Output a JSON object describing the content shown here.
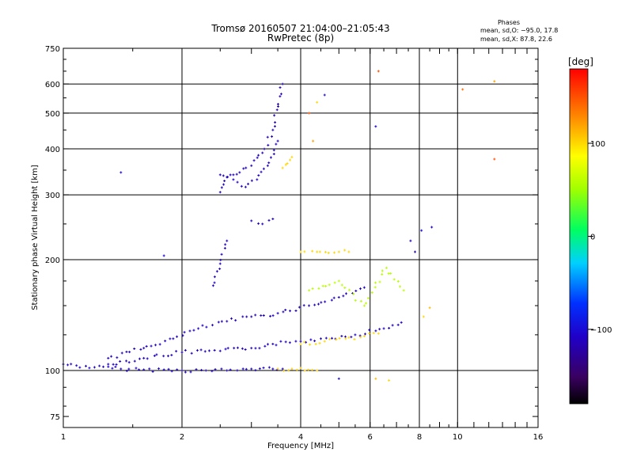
{
  "chart_data": {
    "type": "scatter",
    "title": "Tromsø 20160507 21:04:00–21:05:43",
    "subtitle": "RwPretec (8p)",
    "xlabel": "Frequency [MHz]",
    "ylabel": "Stationary phase Virtual Height [km]",
    "x_scale": "log",
    "y_scale": "log",
    "xlim": [
      1,
      16
    ],
    "ylim": [
      70,
      750
    ],
    "x_ticks": [
      1,
      2,
      4,
      6,
      8,
      10,
      16
    ],
    "x_tick_labels": [
      "1",
      "2",
      "4",
      "6",
      "8",
      "10",
      "16"
    ],
    "y_ticks": [
      75,
      100,
      200,
      300,
      400,
      500,
      600,
      750
    ],
    "y_tick_labels": [
      "75",
      "100",
      "200",
      "300",
      "400",
      "500",
      "600",
      "750"
    ],
    "grid": true,
    "phase_stats": {
      "heading": "Phases",
      "o_line": "mean, sd,O: −95.0, 17.8",
      "x_line": "mean, sd,X:  87.8, 22.6"
    },
    "colorbar": {
      "label": "[deg]",
      "range": [
        -180,
        180
      ],
      "ticks": [
        -100,
        0,
        100
      ],
      "tick_labels": [
        "−100",
        "0",
        "100"
      ],
      "colormap": "rainbow"
    },
    "traces": [
      {
        "x": [
          1.0,
          1.2,
          1.4,
          1.6,
          1.8,
          2.0,
          2.3,
          2.6,
          3.0,
          3.4,
          3.6
        ],
        "y": [
          104,
          102,
          101,
          100.5,
          100.5,
          100,
          100,
          100,
          101,
          101,
          101
        ],
        "phase": -105
      },
      {
        "x": [
          3.5,
          3.8,
          4.1,
          4.4
        ],
        "y": [
          101,
          101,
          100,
          100
        ],
        "phase": 105
      },
      {
        "x": [
          1.3,
          1.6,
          2.0,
          2.5,
          3.0,
          3.4,
          4.0,
          4.5,
          5.5,
          6.5,
          7.2
        ],
        "y": [
          104,
          108,
          112,
          113,
          115,
          118,
          120,
          122,
          125,
          130,
          135
        ],
        "phase": -110
      },
      {
        "x": [
          1.3,
          1.6,
          1.9,
          2.2,
          2.6,
          3.0,
          3.5,
          4.2,
          5.0,
          5.8
        ],
        "y": [
          108,
          115,
          122,
          130,
          136,
          140,
          143,
          150,
          158,
          168
        ],
        "phase": -110
      },
      {
        "x": [
          4.0,
          4.6,
          5.2,
          5.8,
          6.3
        ],
        "y": [
          118,
          120,
          122,
          124,
          126
        ],
        "phase": 100
      },
      {
        "x": [
          2.5,
          2.55,
          2.6,
          2.7,
          2.8,
          3.0,
          3.2,
          3.4,
          3.6
        ],
        "y": [
          305,
          320,
          335,
          340,
          345,
          360,
          390,
          450,
          600
        ],
        "phase": -115
      },
      {
        "x": [
          2.5,
          2.7,
          2.9,
          3.1,
          3.3,
          3.5
        ],
        "y": [
          340,
          330,
          315,
          330,
          360,
          420
        ],
        "phase": -110
      },
      {
        "x": [
          3.6,
          3.7,
          3.8
        ],
        "y": [
          355,
          365,
          380
        ],
        "phase": 100
      },
      {
        "x": [
          2.4,
          2.5,
          2.6
        ],
        "y": [
          170,
          195,
          225
        ],
        "phase": -110
      },
      {
        "x": [
          4.0,
          4.4,
          5.0,
          5.3
        ],
        "y": [
          210,
          210,
          210,
          210
        ],
        "phase": 100
      },
      {
        "x": [
          3.0,
          3.2,
          3.4
        ],
        "y": [
          255,
          250,
          258
        ],
        "phase": -110
      },
      {
        "x": [
          4.2,
          5.0,
          5.8,
          6.6,
          7.3
        ],
        "y": [
          165,
          175,
          150,
          190,
          165
        ],
        "phase": 60
      }
    ],
    "scattered_points": [
      {
        "x": 1.4,
        "y": 345,
        "phase": -100
      },
      {
        "x": 1.8,
        "y": 205,
        "phase": -100
      },
      {
        "x": 6.2,
        "y": 460,
        "phase": -100
      },
      {
        "x": 6.3,
        "y": 650,
        "phase": 150
      },
      {
        "x": 10.3,
        "y": 580,
        "phase": 140
      },
      {
        "x": 12.4,
        "y": 610,
        "phase": 120
      },
      {
        "x": 12.4,
        "y": 375,
        "phase": 150
      },
      {
        "x": 4.6,
        "y": 560,
        "phase": -100
      },
      {
        "x": 4.4,
        "y": 535,
        "phase": 100
      },
      {
        "x": 4.2,
        "y": 500,
        "phase": 150
      },
      {
        "x": 4.3,
        "y": 420,
        "phase": 120
      },
      {
        "x": 5.0,
        "y": 95,
        "phase": -100
      },
      {
        "x": 6.2,
        "y": 95,
        "phase": 110
      },
      {
        "x": 6.7,
        "y": 94,
        "phase": 100
      },
      {
        "x": 8.1,
        "y": 240,
        "phase": -100
      },
      {
        "x": 8.6,
        "y": 245,
        "phase": -110
      },
      {
        "x": 8.5,
        "y": 148,
        "phase": 110
      },
      {
        "x": 8.2,
        "y": 140,
        "phase": 100
      },
      {
        "x": 7.6,
        "y": 225,
        "phase": -110
      },
      {
        "x": 7.8,
        "y": 210,
        "phase": -110
      }
    ]
  }
}
